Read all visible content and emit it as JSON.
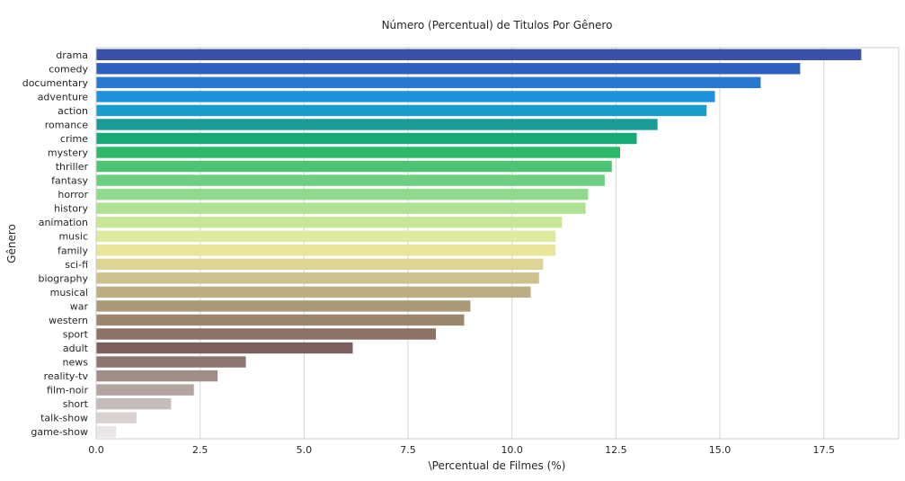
{
  "chart_data": {
    "type": "bar",
    "orientation": "horizontal",
    "title": "Número (Percentual) de Titulos Por Gênero",
    "xlabel": "\\Percentual de Filmes (%)",
    "ylabel": "Gênero",
    "xlim": [
      0,
      19.3
    ],
    "xticks": [
      0.0,
      2.5,
      5.0,
      7.5,
      10.0,
      12.5,
      15.0,
      17.5
    ],
    "xtick_labels": [
      "0.0",
      "2.5",
      "5.0",
      "7.5",
      "10.0",
      "12.5",
      "15.0",
      "17.5"
    ],
    "grid": "vertical",
    "categories": [
      "drama",
      "comedy",
      "documentary",
      "adventure",
      "action",
      "romance",
      "crime",
      "mystery",
      "thriller",
      "fantasy",
      "horror",
      "history",
      "animation",
      "music",
      "family",
      "sci-fi",
      "biography",
      "musical",
      "war",
      "western",
      "sport",
      "adult",
      "news",
      "reality-tv",
      "film-noir",
      "short",
      "talk-show",
      "game-show"
    ],
    "values": [
      18.4,
      16.93,
      15.98,
      14.88,
      14.68,
      13.5,
      13.0,
      12.6,
      12.4,
      12.23,
      11.83,
      11.77,
      11.2,
      11.05,
      11.05,
      10.75,
      10.65,
      10.45,
      9.0,
      8.85,
      8.17,
      6.17,
      3.6,
      2.92,
      2.35,
      1.8,
      0.97,
      0.48
    ],
    "colors": [
      "#3a4fa8",
      "#2f5fbd",
      "#2878cf",
      "#1e90dd",
      "#1b9dcc",
      "#1a9b95",
      "#17aa74",
      "#2db96a",
      "#4cc474",
      "#6dcf82",
      "#8fda8c",
      "#aee193",
      "#c8e697",
      "#dfeb9c",
      "#e9e69a",
      "#ddd595",
      "#cdc18d",
      "#bcad83",
      "#ab9a79",
      "#9a8770",
      "#8a7366",
      "#795f5e",
      "#8d7672",
      "#a08d89",
      "#b3a4a0",
      "#c5bcb9",
      "#d9d2d1",
      "#ebe6e6"
    ]
  }
}
